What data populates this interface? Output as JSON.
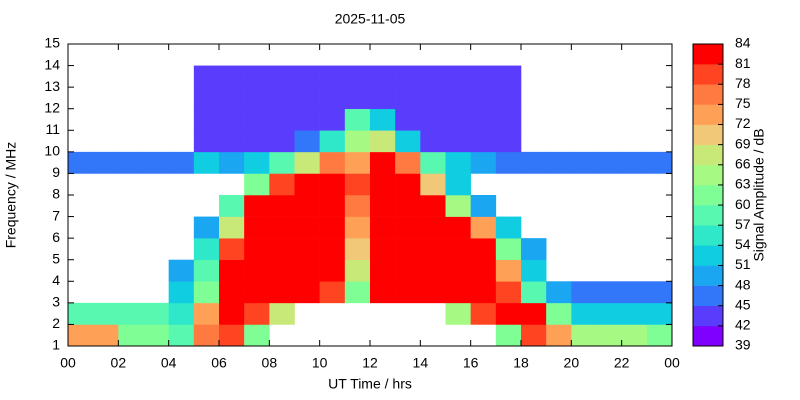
{
  "chart_data": {
    "type": "heatmap",
    "title": "2025-11-05",
    "xlabel": "UT Time / hrs",
    "ylabel": "Frequency / MHz",
    "colorbar_label": "Signal Amplitude / dB",
    "xbins": [
      0,
      1,
      2,
      3,
      4,
      5,
      6,
      7,
      8,
      9,
      10,
      11,
      12,
      13,
      14,
      15,
      16,
      17,
      18,
      19,
      20,
      21,
      22,
      23,
      24
    ],
    "ybins": [
      1,
      2,
      3,
      4,
      5,
      6,
      7,
      8,
      9,
      10,
      11,
      12,
      13,
      14,
      15
    ],
    "z": [
      [
        72,
        72,
        60,
        60,
        57,
        75,
        80,
        60,
        null,
        null,
        null,
        null,
        null,
        null,
        null,
        null,
        null,
        60,
        78,
        72,
        63,
        63,
        63,
        60
      ],
      [
        57,
        57,
        57,
        57,
        54,
        72,
        81,
        78,
        66,
        null,
        null,
        null,
        null,
        null,
        null,
        63,
        78,
        81,
        81,
        60,
        51,
        51,
        51,
        51
      ],
      [
        null,
        null,
        null,
        null,
        51,
        60,
        81,
        84,
        84,
        81,
        78,
        60,
        81,
        84,
        84,
        84,
        84,
        78,
        57,
        48,
        45,
        45,
        45,
        45
      ],
      [
        null,
        null,
        null,
        null,
        48,
        57,
        81,
        84,
        84,
        84,
        84,
        66,
        84,
        84,
        84,
        84,
        84,
        72,
        51,
        null,
        null,
        null,
        null,
        null
      ],
      [
        null,
        null,
        null,
        null,
        null,
        54,
        78,
        84,
        84,
        84,
        84,
        69,
        84,
        84,
        84,
        84,
        81,
        60,
        48,
        null,
        null,
        null,
        null,
        null
      ],
      [
        null,
        null,
        null,
        null,
        null,
        48,
        66,
        84,
        84,
        84,
        84,
        72,
        84,
        84,
        84,
        84,
        72,
        51,
        null,
        null,
        null,
        null,
        null,
        null
      ],
      [
        null,
        null,
        null,
        null,
        null,
        null,
        57,
        81,
        84,
        84,
        84,
        75,
        84,
        84,
        84,
        63,
        48,
        null,
        null,
        null,
        null,
        null,
        null,
        null
      ],
      [
        null,
        null,
        null,
        null,
        null,
        null,
        null,
        60,
        78,
        84,
        84,
        78,
        84,
        84,
        69,
        51,
        null,
        null,
        null,
        null,
        null,
        null,
        null,
        null
      ],
      [
        45,
        45,
        45,
        45,
        45,
        51,
        48,
        51,
        57,
        66,
        75,
        72,
        84,
        75,
        57,
        51,
        48,
        45,
        45,
        45,
        45,
        45,
        45,
        45
      ],
      [
        null,
        null,
        null,
        null,
        null,
        42,
        42,
        42,
        42,
        45,
        54,
        63,
        66,
        51,
        42,
        42,
        42,
        42,
        null,
        null,
        null,
        null,
        null,
        null
      ],
      [
        null,
        null,
        null,
        null,
        null,
        42,
        42,
        42,
        42,
        42,
        42,
        57,
        51,
        42,
        42,
        42,
        42,
        42,
        null,
        null,
        null,
        null,
        null,
        null
      ],
      [
        null,
        null,
        null,
        null,
        null,
        42,
        42,
        42,
        42,
        42,
        42,
        42,
        42,
        42,
        42,
        42,
        42,
        42,
        null,
        null,
        null,
        null,
        null,
        null
      ],
      [
        null,
        null,
        null,
        null,
        null,
        42,
        42,
        42,
        42,
        42,
        42,
        42,
        42,
        42,
        42,
        42,
        42,
        42,
        null,
        null,
        null,
        null,
        null,
        null
      ],
      [
        null,
        null,
        null,
        null,
        null,
        null,
        null,
        null,
        null,
        null,
        null,
        null,
        null,
        null,
        null,
        null,
        null,
        null,
        null,
        null,
        null,
        null,
        null,
        null
      ]
    ],
    "xlim": [
      0,
      24
    ],
    "xticks": [
      {
        "value": 0,
        "label": "00"
      },
      {
        "value": 2,
        "label": "02"
      },
      {
        "value": 4,
        "label": "04"
      },
      {
        "value": 6,
        "label": "06"
      },
      {
        "value": 8,
        "label": "08"
      },
      10,
      12,
      14,
      16,
      18,
      20,
      22,
      {
        "value": 24,
        "label": "00"
      }
    ],
    "ylim": [
      1,
      15
    ],
    "yticks": [
      1,
      2,
      3,
      4,
      5,
      6,
      7,
      8,
      9,
      10,
      11,
      12,
      13,
      14,
      15
    ],
    "clim": [
      39,
      84
    ],
    "cticks": [
      39,
      42,
      45,
      48,
      51,
      54,
      57,
      60,
      63,
      66,
      69,
      72,
      75,
      78,
      81,
      84
    ],
    "colormap": [
      "#8000ff",
      "#5a3cfc",
      "#3277fa",
      "#1aa6f0",
      "#10cde2",
      "#2ee8c9",
      "#58f8b0",
      "#80fe96",
      "#a6f982",
      "#c8e878",
      "#f0c878",
      "#ffa057",
      "#ff7a40",
      "#ff4422",
      "#ff0000"
    ]
  }
}
